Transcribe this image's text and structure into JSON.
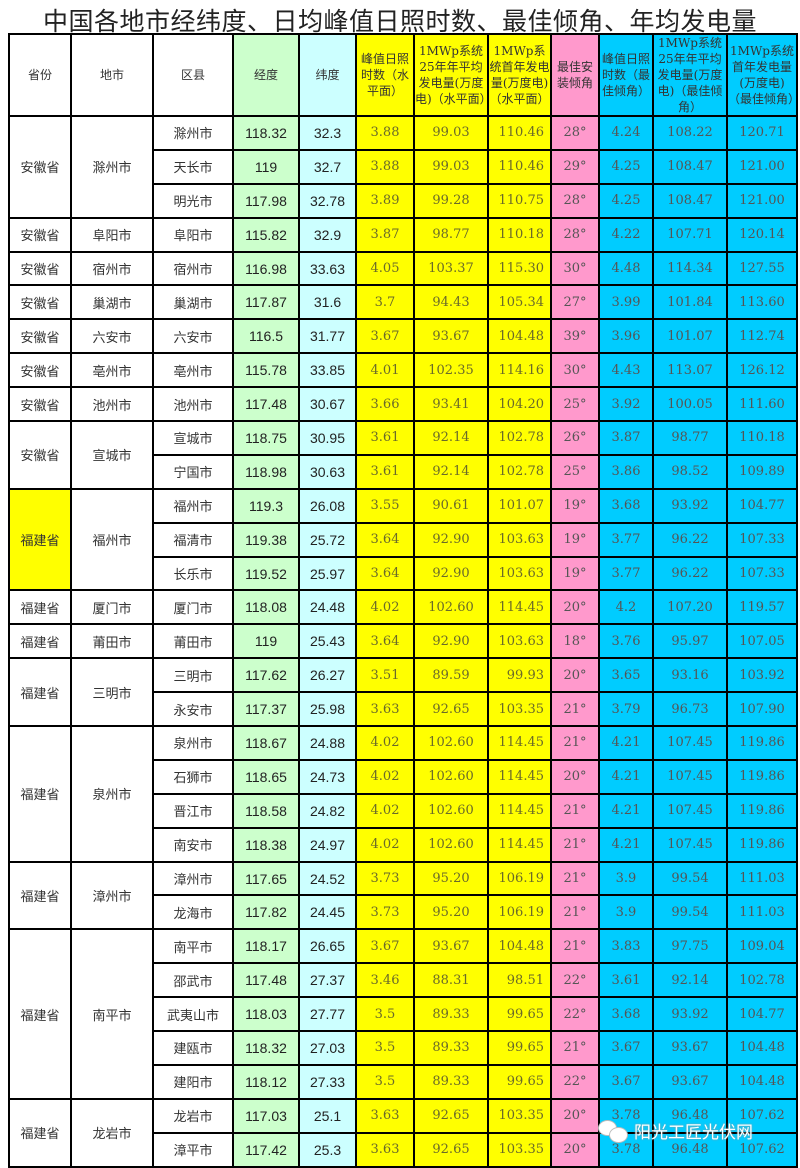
{
  "title": "中国各地市经纬度、日均峰值日照时数、最佳倾角、年均发电量",
  "headers": [
    "省份",
    "地市",
    "区县",
    "经度",
    "纬度",
    "峰值日照时数（水平面）",
    "1MWp系统25年年平均发电量(万度电)（水平面）",
    "1MWp系统首年发电量(万度电)（水平面）",
    "最佳安装倾角",
    "峰值日照时数（最佳倾角）",
    "1MWp系统25年年平均发电量(万度电)（最佳倾角）",
    "1MWp系统首年发电量(万度电)（最佳倾角）"
  ],
  "colors": {
    "lng": "#ccffcc",
    "lat": "#ccffff",
    "horizontal": "#ffff00",
    "angle": "#ff99cc",
    "optimal": "#00ccff",
    "fujian_highlight": "#ffff00"
  },
  "groups": [
    {
      "province": "安徽省",
      "city": "滁州市",
      "rows": [
        [
          "滁州市",
          "118.32",
          "32.3",
          "3.88",
          "99.03",
          "110.46",
          "28°",
          "4.24",
          "108.22",
          "120.71"
        ],
        [
          "天长市",
          "119",
          "32.7",
          "3.88",
          "99.03",
          "110.46",
          "29°",
          "4.25",
          "108.47",
          "121.00"
        ],
        [
          "明光市",
          "117.98",
          "32.78",
          "3.89",
          "99.28",
          "110.75",
          "28°",
          "4.25",
          "108.47",
          "121.00"
        ]
      ]
    },
    {
      "province": "安徽省",
      "city": "阜阳市",
      "rows": [
        [
          "阜阳市",
          "115.82",
          "32.9",
          "3.87",
          "98.77",
          "110.18",
          "28°",
          "4.22",
          "107.71",
          "120.14"
        ]
      ]
    },
    {
      "province": "安徽省",
      "city": "宿州市",
      "rows": [
        [
          "宿州市",
          "116.98",
          "33.63",
          "4.05",
          "103.37",
          "115.30",
          "30°",
          "4.48",
          "114.34",
          "127.55"
        ]
      ]
    },
    {
      "province": "安徽省",
      "city": "巢湖市",
      "rows": [
        [
          "巢湖市",
          "117.87",
          "31.6",
          "3.7",
          "94.43",
          "105.34",
          "27°",
          "3.99",
          "101.84",
          "113.60"
        ]
      ]
    },
    {
      "province": "安徽省",
      "city": "六安市",
      "rows": [
        [
          "六安市",
          "116.5",
          "31.77",
          "3.67",
          "93.67",
          "104.48",
          "39°",
          "3.96",
          "101.07",
          "112.74"
        ]
      ]
    },
    {
      "province": "安徽省",
      "city": "亳州市",
      "rows": [
        [
          "亳州市",
          "115.78",
          "33.85",
          "4.01",
          "102.35",
          "114.16",
          "30°",
          "4.43",
          "113.07",
          "126.12"
        ]
      ]
    },
    {
      "province": "安徽省",
      "city": "池州市",
      "rows": [
        [
          "池州市",
          "117.48",
          "30.67",
          "3.66",
          "93.41",
          "104.20",
          "25°",
          "3.92",
          "100.05",
          "111.60"
        ]
      ]
    },
    {
      "province": "安徽省",
      "city": "宣城市",
      "rows": [
        [
          "宣城市",
          "118.75",
          "30.95",
          "3.61",
          "92.14",
          "102.78",
          "26°",
          "3.87",
          "98.77",
          "110.18"
        ],
        [
          "宁国市",
          "118.98",
          "30.63",
          "3.61",
          "92.14",
          "102.78",
          "25°",
          "3.86",
          "98.52",
          "109.89"
        ]
      ]
    },
    {
      "province": "福建省",
      "city": "福州市",
      "highlight": true,
      "rows": [
        [
          "福州市",
          "119.3",
          "26.08",
          "3.55",
          "90.61",
          "101.07",
          "19°",
          "3.68",
          "93.92",
          "104.77"
        ],
        [
          "福清市",
          "119.38",
          "25.72",
          "3.64",
          "92.90",
          "103.63",
          "19°",
          "3.77",
          "96.22",
          "107.33"
        ],
        [
          "长乐市",
          "119.52",
          "25.97",
          "3.64",
          "92.90",
          "103.63",
          "19°",
          "3.77",
          "96.22",
          "107.33"
        ]
      ]
    },
    {
      "province": "福建省",
      "city": "厦门市",
      "rows": [
        [
          "厦门市",
          "118.08",
          "24.48",
          "4.02",
          "102.60",
          "114.45",
          "20°",
          "4.2",
          "107.20",
          "119.57"
        ]
      ]
    },
    {
      "province": "福建省",
      "city": "莆田市",
      "rows": [
        [
          "莆田市",
          "119",
          "25.43",
          "3.64",
          "92.90",
          "103.63",
          "18°",
          "3.76",
          "95.97",
          "107.05"
        ]
      ]
    },
    {
      "province": "福建省",
      "city": "三明市",
      "rows": [
        [
          "三明市",
          "117.62",
          "26.27",
          "3.51",
          "89.59",
          "99.93",
          "20°",
          "3.65",
          "93.16",
          "103.92"
        ],
        [
          "永安市",
          "117.37",
          "25.98",
          "3.63",
          "92.65",
          "103.35",
          "21°",
          "3.79",
          "96.73",
          "107.90"
        ]
      ]
    },
    {
      "province": "福建省",
      "city": "泉州市",
      "rows": [
        [
          "泉州市",
          "118.67",
          "24.88",
          "4.02",
          "102.60",
          "114.45",
          "21°",
          "4.21",
          "107.45",
          "119.86"
        ],
        [
          "石狮市",
          "118.65",
          "24.73",
          "4.02",
          "102.60",
          "114.45",
          "20°",
          "4.21",
          "107.45",
          "119.86"
        ],
        [
          "晋江市",
          "118.58",
          "24.82",
          "4.02",
          "102.60",
          "114.45",
          "21°",
          "4.21",
          "107.45",
          "119.86"
        ],
        [
          "南安市",
          "118.38",
          "24.97",
          "4.02",
          "102.60",
          "114.45",
          "21°",
          "4.21",
          "107.45",
          "119.86"
        ]
      ]
    },
    {
      "province": "福建省",
      "city": "漳州市",
      "rows": [
        [
          "漳州市",
          "117.65",
          "24.52",
          "3.73",
          "95.20",
          "106.19",
          "21°",
          "3.9",
          "99.54",
          "111.03"
        ],
        [
          "龙海市",
          "117.82",
          "24.45",
          "3.73",
          "95.20",
          "106.19",
          "21°",
          "3.9",
          "99.54",
          "111.03"
        ]
      ]
    },
    {
      "province": "福建省",
      "city": "南平市",
      "rows": [
        [
          "南平市",
          "118.17",
          "26.65",
          "3.67",
          "93.67",
          "104.48",
          "21°",
          "3.83",
          "97.75",
          "109.04"
        ],
        [
          "邵武市",
          "117.48",
          "27.37",
          "3.46",
          "88.31",
          "98.51",
          "22°",
          "3.61",
          "92.14",
          "102.78"
        ],
        [
          "武夷山市",
          "118.03",
          "27.77",
          "3.5",
          "89.33",
          "99.65",
          "22°",
          "3.68",
          "93.92",
          "104.77"
        ],
        [
          "建瓯市",
          "118.32",
          "27.03",
          "3.5",
          "89.33",
          "99.65",
          "21°",
          "3.67",
          "93.67",
          "104.48"
        ],
        [
          "建阳市",
          "118.12",
          "27.33",
          "3.5",
          "89.33",
          "99.65",
          "22°",
          "3.67",
          "93.67",
          "104.48"
        ]
      ]
    },
    {
      "province": "福建省",
      "city": "龙岩市",
      "rows": [
        [
          "龙岩市",
          "117.03",
          "25.1",
          "3.63",
          "92.65",
          "103.35",
          "20°",
          "3.78",
          "96.48",
          "107.62"
        ],
        [
          "漳平市",
          "117.42",
          "25.3",
          "3.63",
          "92.65",
          "103.35",
          "20°",
          "3.78",
          "96.48",
          "107.62"
        ]
      ]
    }
  ],
  "watermark": {
    "icon": "wechat-icon",
    "text": "阳光工匠光伏网"
  }
}
